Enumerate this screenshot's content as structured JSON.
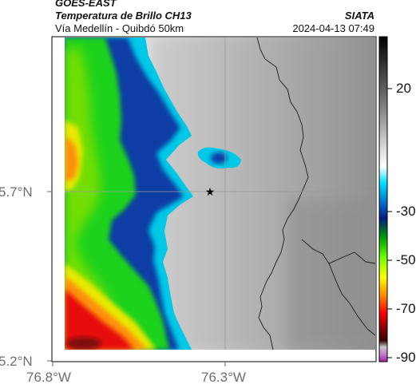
{
  "header": {
    "satellite": "GOES-EAST",
    "product": "Temperatura de Brillo CH13",
    "org": "SIATA",
    "subtitle": "Vía Medellín - Quibdó 50km",
    "datetime": "2024-04-13 07:49"
  },
  "axes": {
    "y_ticks": [
      "5.7°N",
      "5.2°N"
    ],
    "x_ticks": [
      "76.8°W",
      "76.3°W"
    ]
  },
  "colorbar": {
    "ticks": [
      "20",
      "-30",
      "-50",
      "-70",
      "-90"
    ],
    "gradient": [
      "#000000",
      "#777777",
      "#ffffff",
      "#00e0ff",
      "#0060c0",
      "#001a80",
      "#00a000",
      "#70ff00",
      "#ffff00",
      "#ff8000",
      "#ff0000",
      "#800000",
      "#3b0000",
      "#c8c8c8",
      "#c070c8",
      "#a020a0"
    ]
  },
  "map": {
    "marker": "star",
    "colors": {
      "cold_red": "#e81010",
      "orange": "#ff9010",
      "yellow": "#e8e800",
      "green": "#1ad21a",
      "blue": "#0a3ca5",
      "cyan": "#00c8e6",
      "warm_gray": "#a8a8a8",
      "white": "#f4f4f4"
    }
  }
}
